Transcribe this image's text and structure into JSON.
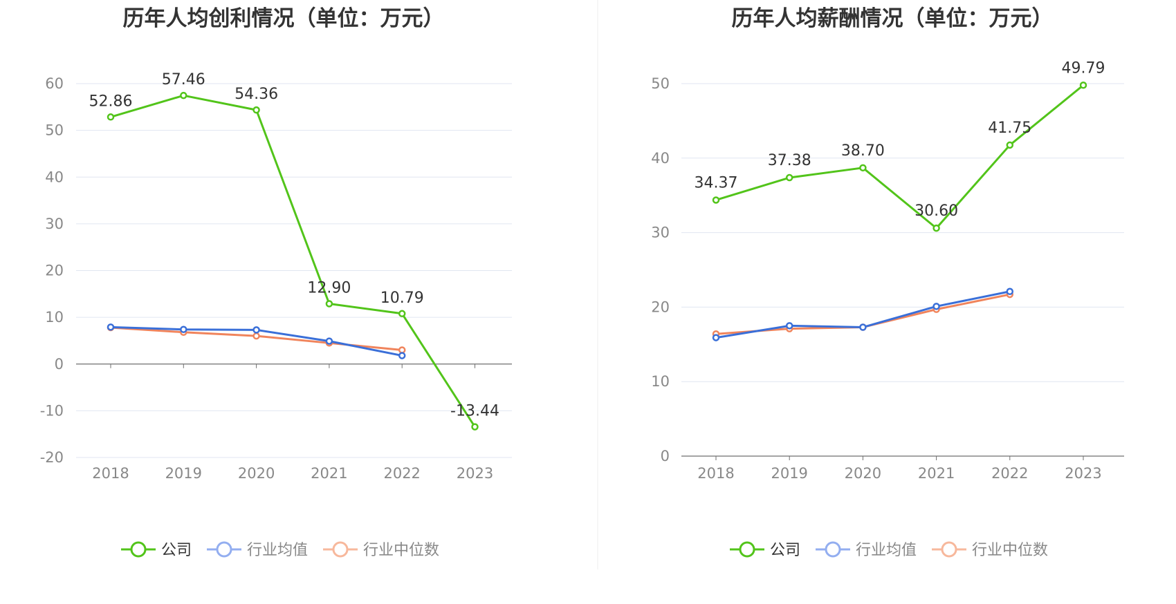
{
  "charts": [
    {
      "title": "历年人均创利情况（单位：万元）",
      "chart_data": {
        "type": "line",
        "title": "历年人均创利情况（单位：万元）",
        "xlabel": "",
        "ylabel": "",
        "categories": [
          "2018",
          "2019",
          "2020",
          "2021",
          "2022",
          "2023"
        ],
        "ylim": [
          -20,
          60
        ],
        "yticks": [
          -20,
          -10,
          0,
          10,
          20,
          30,
          40,
          50,
          60
        ],
        "grid": true,
        "legend": "bottom",
        "series": [
          {
            "name": "公司",
            "color": "#52c41a",
            "values": [
              52.86,
              57.46,
              54.36,
              12.9,
              10.79,
              -13.44
            ],
            "labels": [
              "52.86",
              "57.46",
              "54.36",
              "12.90",
              "10.79",
              "-13.44"
            ]
          },
          {
            "name": "行业均值",
            "color": "#3a6fd8",
            "values": [
              7.9,
              7.4,
              7.3,
              4.9,
              1.8,
              null
            ]
          },
          {
            "name": "行业中位数",
            "color": "#f0845c",
            "values": [
              7.8,
              6.8,
              6.0,
              4.5,
              3.0,
              null
            ]
          }
        ]
      }
    },
    {
      "title": "历年人均薪酬情况（单位：万元）",
      "chart_data": {
        "type": "line",
        "title": "历年人均薪酬情况（单位：万元）",
        "xlabel": "",
        "ylabel": "",
        "categories": [
          "2018",
          "2019",
          "2020",
          "2021",
          "2022",
          "2023"
        ],
        "ylim": [
          0,
          50
        ],
        "yticks": [
          0,
          10,
          20,
          30,
          40,
          50
        ],
        "grid": true,
        "legend": "bottom",
        "series": [
          {
            "name": "公司",
            "color": "#52c41a",
            "values": [
              34.37,
              37.38,
              38.7,
              30.6,
              41.75,
              49.79
            ],
            "labels": [
              "34.37",
              "37.38",
              "38.70",
              "30.60",
              "41.75",
              "49.79"
            ]
          },
          {
            "name": "行业均值",
            "color": "#3a6fd8",
            "values": [
              15.9,
              17.5,
              17.3,
              20.1,
              22.1,
              null
            ]
          },
          {
            "name": "行业中位数",
            "color": "#f0845c",
            "values": [
              16.4,
              17.1,
              17.3,
              19.7,
              21.7,
              null
            ]
          }
        ]
      }
    }
  ],
  "legend_colors": {
    "active_text": "#333333",
    "muted_text": "#888888",
    "muted_blue": "#93aef0",
    "muted_orange": "#f7b89c"
  }
}
